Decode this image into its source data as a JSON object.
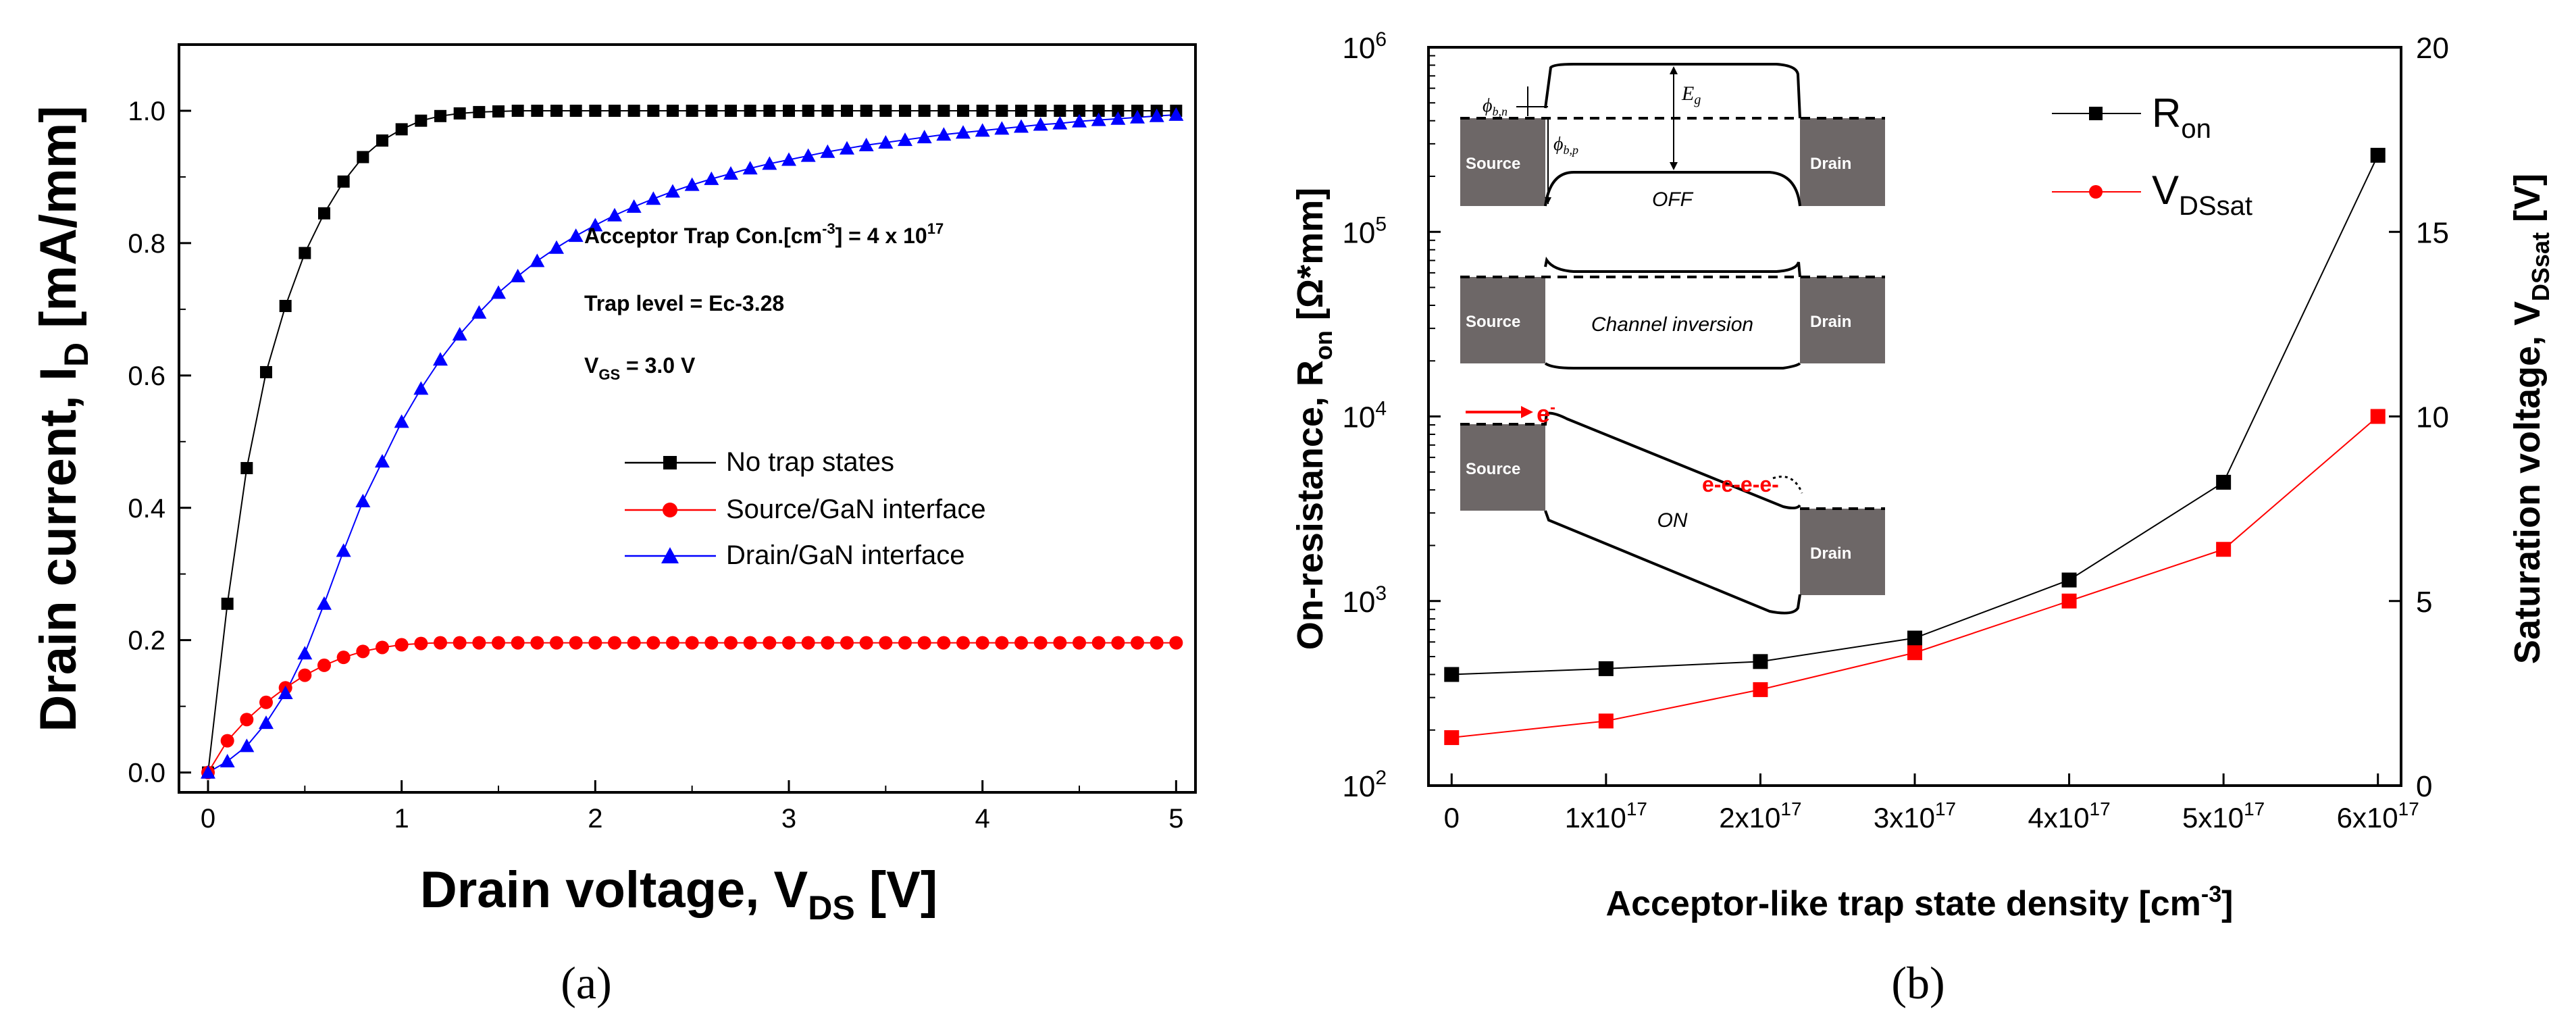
{
  "chart_data": [
    {
      "id": "a",
      "type": "scatter",
      "panel_label": "(a)",
      "xlabel": "Drain voltage, V",
      "xlabel_sub": "DS",
      "xlabel_end": " [V]",
      "ylabel": "Drain current, I",
      "ylabel_sub": "D",
      "ylabel_end": " [mA/mm]",
      "xlim": [
        -0.15,
        5.1
      ],
      "ylim": [
        -0.03,
        1.1
      ],
      "xticks": [
        0,
        1,
        2,
        3,
        4,
        5
      ],
      "yticks": [
        0.0,
        0.2,
        0.4,
        0.6,
        0.8,
        1.0
      ],
      "ytick_labels": [
        "0.0",
        "0.2",
        "0.4",
        "0.6",
        "0.8",
        "1.0"
      ],
      "annotations": {
        "line1_main": "Acceptor Trap Con.[cm",
        "line1_sup1": "-3",
        "line1_mid": "] = 4 x 10",
        "line1_sup2": "17",
        "line2": "Trap level = Ec-3.28",
        "line3_main": "V",
        "line3_sub": "GS",
        "line3_end": " = 3.0 V"
      },
      "legend": {
        "position": "center-right",
        "entries": [
          "No trap states",
          "Source/GaN interface",
          "Drain/GaN interface"
        ]
      },
      "series": [
        {
          "name": "No trap states",
          "color": "#000000",
          "marker": "square",
          "x": [
            0,
            0.1,
            0.2,
            0.3,
            0.4,
            0.5,
            0.6,
            0.7,
            0.8,
            0.9,
            1.0,
            1.1,
            1.2,
            1.3,
            1.4,
            1.5,
            1.6,
            1.7,
            1.8,
            1.9,
            2.0,
            2.1,
            2.2,
            2.3,
            2.4,
            2.5,
            2.6,
            2.7,
            2.8,
            2.9,
            3.0,
            3.1,
            3.2,
            3.3,
            3.4,
            3.5,
            3.6,
            3.7,
            3.8,
            3.9,
            4.0,
            4.1,
            4.2,
            4.3,
            4.4,
            4.5,
            4.6,
            4.7,
            4.8,
            4.9,
            5.0
          ],
          "y": [
            0,
            0.255,
            0.46,
            0.605,
            0.705,
            0.785,
            0.845,
            0.893,
            0.93,
            0.955,
            0.972,
            0.985,
            0.992,
            0.996,
            0.998,
            0.999,
            1.0,
            1.0,
            1.0,
            1.0,
            1.0,
            1.0,
            1.0,
            1.0,
            1.0,
            1.0,
            1.0,
            1.0,
            1.0,
            1.0,
            1.0,
            1.0,
            1.0,
            1.0,
            1.0,
            1.0,
            1.0,
            1.0,
            1.0,
            1.0,
            1.0,
            1.0,
            1.0,
            1.0,
            1.0,
            1.0,
            1.0,
            1.0,
            1.0,
            1.0,
            1.0
          ]
        },
        {
          "name": "Source/GaN interface",
          "color": "#ff0000",
          "marker": "circle",
          "x": [
            0,
            0.1,
            0.2,
            0.3,
            0.4,
            0.5,
            0.6,
            0.7,
            0.8,
            0.9,
            1.0,
            1.1,
            1.2,
            1.3,
            1.4,
            1.5,
            1.6,
            1.7,
            1.8,
            1.9,
            2.0,
            2.1,
            2.2,
            2.3,
            2.4,
            2.5,
            2.6,
            2.7,
            2.8,
            2.9,
            3.0,
            3.1,
            3.2,
            3.3,
            3.4,
            3.5,
            3.6,
            3.7,
            3.8,
            3.9,
            4.0,
            4.1,
            4.2,
            4.3,
            4.4,
            4.5,
            4.6,
            4.7,
            4.8,
            4.9,
            5.0
          ],
          "y": [
            0,
            0.048,
            0.08,
            0.106,
            0.128,
            0.147,
            0.162,
            0.174,
            0.183,
            0.189,
            0.193,
            0.195,
            0.196,
            0.196,
            0.196,
            0.196,
            0.196,
            0.196,
            0.196,
            0.196,
            0.196,
            0.196,
            0.196,
            0.196,
            0.196,
            0.196,
            0.196,
            0.196,
            0.196,
            0.196,
            0.196,
            0.196,
            0.196,
            0.196,
            0.196,
            0.196,
            0.196,
            0.196,
            0.196,
            0.196,
            0.196,
            0.196,
            0.196,
            0.196,
            0.196,
            0.196,
            0.196,
            0.196,
            0.196,
            0.196,
            0.196
          ]
        },
        {
          "name": "Drain/GaN interface",
          "color": "#0000ff",
          "marker": "triangle",
          "x": [
            0,
            0.1,
            0.2,
            0.3,
            0.4,
            0.5,
            0.6,
            0.7,
            0.8,
            0.9,
            1.0,
            1.1,
            1.2,
            1.3,
            1.4,
            1.5,
            1.6,
            1.7,
            1.8,
            1.9,
            2.0,
            2.1,
            2.2,
            2.3,
            2.4,
            2.5,
            2.6,
            2.7,
            2.8,
            2.9,
            3.0,
            3.1,
            3.2,
            3.3,
            3.4,
            3.5,
            3.6,
            3.7,
            3.8,
            3.9,
            4.0,
            4.1,
            4.2,
            4.3,
            4.4,
            4.5,
            4.6,
            4.7,
            4.8,
            4.9,
            5.0
          ],
          "y": [
            0,
            0.017,
            0.04,
            0.075,
            0.12,
            0.18,
            0.255,
            0.335,
            0.41,
            0.47,
            0.53,
            0.58,
            0.624,
            0.662,
            0.695,
            0.725,
            0.75,
            0.773,
            0.793,
            0.811,
            0.827,
            0.842,
            0.855,
            0.867,
            0.878,
            0.888,
            0.897,
            0.905,
            0.913,
            0.92,
            0.926,
            0.932,
            0.938,
            0.943,
            0.948,
            0.952,
            0.956,
            0.96,
            0.964,
            0.967,
            0.97,
            0.973,
            0.976,
            0.979,
            0.981,
            0.984,
            0.986,
            0.988,
            0.99,
            0.992,
            0.994
          ]
        }
      ]
    },
    {
      "id": "b",
      "type": "line",
      "panel_label": "(b)",
      "xlabel_main": "Acceptor-like trap state density [cm",
      "xlabel_sup": "-3",
      "xlabel_end": "]",
      "ylabel_left_main": "On-resistance, R",
      "ylabel_left_sub": "on",
      "ylabel_left_end": " [Ω*mm]",
      "ylabel_right_main": "Saturation voltage, V",
      "ylabel_right_sub": "DSsat",
      "ylabel_right_end": " [V]",
      "x": [
        0,
        1e+17,
        2e+17,
        3e+17,
        4e+17,
        5e+17,
        6e+17
      ],
      "xlim": [
        -1.5e+16,
        6.15e+17
      ],
      "xtick_labels": [
        {
          "main": "0",
          "sup": ""
        },
        {
          "main": "1x10",
          "sup": "17"
        },
        {
          "main": "2x10",
          "sup": "17"
        },
        {
          "main": "3x10",
          "sup": "17"
        },
        {
          "main": "4x10",
          "sup": "17"
        },
        {
          "main": "5x10",
          "sup": "17"
        },
        {
          "main": "6x10",
          "sup": "17"
        }
      ],
      "ylim_left_log10": [
        2,
        6
      ],
      "yticks_left": [
        {
          "main": "10",
          "sup": "2"
        },
        {
          "main": "10",
          "sup": "3"
        },
        {
          "main": "10",
          "sup": "4"
        },
        {
          "main": "10",
          "sup": "5"
        },
        {
          "main": "10",
          "sup": "6"
        }
      ],
      "ylim_right": [
        0,
        20
      ],
      "yticks_right": [
        "0",
        "5",
        "10",
        "15",
        "20"
      ],
      "legend": {
        "position": "top-right",
        "entries": [
          {
            "main": "R",
            "sub": "on"
          },
          {
            "main": "V",
            "sub": "DSsat"
          }
        ]
      },
      "series": [
        {
          "name": "Ron",
          "color": "#000000",
          "axis": "left",
          "marker": "square",
          "values": [
            400,
            430,
            470,
            630,
            1300,
            4400,
            260000
          ]
        },
        {
          "name": "VDSsat",
          "color": "#ff0000",
          "axis": "right",
          "marker": "square",
          "values": [
            1.3,
            1.75,
            2.6,
            3.6,
            5.0,
            6.4,
            10.0
          ]
        }
      ],
      "inset": {
        "off": {
          "source": "Source",
          "drain": "Drain",
          "state": "OFF",
          "eg": "E",
          "eg_sub": "g",
          "phi_bn": "ϕ",
          "phi_bn_sub": "b,n",
          "phi_bp": "ϕ",
          "phi_bp_sub": "b,p"
        },
        "inversion": {
          "source": "Source",
          "drain": "Drain",
          "state": "Channel inversion"
        },
        "on": {
          "source": "Source",
          "drain": "Drain",
          "state": "ON",
          "electron": "e",
          "electron_sup": "-",
          "cluster": "e-e-e-e-"
        }
      }
    }
  ]
}
